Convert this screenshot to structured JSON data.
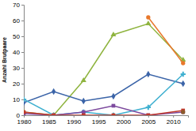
{
  "chart_data": {
    "type": "line",
    "y_label": "Anzahl Brutpaare",
    "x": [
      1980,
      1986,
      1992,
      1998,
      2005,
      2012
    ],
    "xlim": [
      1980,
      2013
    ],
    "xticks": [
      1980,
      1985,
      1990,
      1995,
      2000,
      2005,
      2010
    ],
    "ylim": [
      0,
      70
    ],
    "yticks": [
      0,
      10,
      20,
      30,
      40,
      50,
      60,
      70
    ],
    "grid": false,
    "series": [
      {
        "color": "#8fb43f",
        "marker": "triangle",
        "values": [
          2,
          0,
          22,
          51,
          58,
          35
        ]
      },
      {
        "color": "#3b64a8",
        "marker": "diamond",
        "values": [
          8,
          15,
          9,
          12,
          26,
          20
        ]
      },
      {
        "color": "#e8782c",
        "marker": "circle",
        "values": [
          null,
          null,
          null,
          null,
          62,
          33
        ]
      },
      {
        "color": "#3fb0d0",
        "marker": "cross",
        "values": [
          10,
          0,
          2,
          0,
          5,
          26
        ]
      },
      {
        "color": "#7d4a9e",
        "marker": "square",
        "values": [
          1,
          0,
          2,
          6,
          0,
          2
        ]
      },
      {
        "color": "#c0392b",
        "marker": "square",
        "values": [
          2,
          0,
          0,
          0,
          0,
          3
        ]
      },
      {
        "color": "#8b5a2b",
        "marker": "circle",
        "values": [
          null,
          null,
          null,
          null,
          null,
          2
        ]
      }
    ]
  }
}
